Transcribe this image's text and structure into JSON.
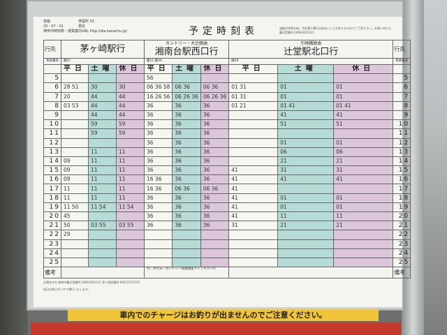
{
  "header": {
    "line1": "自版",
    "line2": "25・07・01",
    "line3": "神奈中時刻表・運賃案内URL  http://dia.kanachu.jp/",
    "stop_label": "停留所",
    "stop_no": "03",
    "current": "現在",
    "title": "予定時刻表",
    "notice": "道路渋滞等の為、予定通り運行出来ないことがありますのでご了承下さい。お問い合わせ 藤沢営業所 0466(36)5121"
  },
  "labels": {
    "destination": "行先",
    "route_no": "系統番号",
    "remarks": "備考"
  },
  "day_types": [
    "平日",
    "土曜",
    "休日"
  ],
  "routes": [
    {
      "via": "",
      "destination": "茅ヶ崎駅行",
      "codes": "藤07"
    },
    {
      "via": "カントリー・大辻経由",
      "destination": "湘南台駅西口行",
      "codes": "藤15 藤39"
    },
    {
      "via": "引地橋経由",
      "destination": "辻堂駅北口行",
      "codes": "藤09"
    }
  ],
  "remarks": [
    "",
    "カ：大六天・カントリー経由湘南ライフタウン行",
    ""
  ],
  "hours": [
    5,
    6,
    7,
    8,
    9,
    10,
    11,
    12,
    13,
    14,
    15,
    16,
    17,
    18,
    19,
    20,
    21,
    22,
    23,
    24,
    25
  ],
  "timetable": [
    [
      "",
      "",
      "",
      "56",
      "",
      "",
      "",
      "",
      ""
    ],
    [
      "28 51",
      "30",
      "30",
      "06 36 58",
      "06 36",
      "06 36",
      "01 31",
      "01",
      "01"
    ],
    [
      "20",
      "44",
      "44",
      "16 26 56",
      "06 26 36",
      "06 26 36",
      "01 31",
      "01",
      "01"
    ],
    [
      "03 53",
      "44",
      "44",
      "36",
      "36",
      "36",
      "01 21",
      "01 41",
      "01 41"
    ],
    [
      "",
      "44",
      "44",
      "36",
      "36",
      "36",
      "",
      "41",
      "41"
    ],
    [
      "",
      "59",
      "59",
      "36",
      "36",
      "36",
      "",
      "51",
      "51"
    ],
    [
      "",
      "59",
      "59",
      "36",
      "36",
      "36",
      "",
      "",
      ""
    ],
    [
      "",
      "",
      "",
      "36",
      "36",
      "36",
      "",
      "01",
      "01"
    ],
    [
      "",
      "11",
      "11",
      "36",
      "36",
      "36",
      "",
      "06",
      "06"
    ],
    [
      "09",
      "11",
      "11",
      "36",
      "36",
      "36",
      "",
      "21",
      "21"
    ],
    [
      "09",
      "11",
      "11",
      "36",
      "36",
      "36",
      "41",
      "31",
      "31"
    ],
    [
      "09",
      "11",
      "11",
      "16 36",
      "36",
      "36",
      "41",
      "41",
      "41"
    ],
    [
      "11",
      "11",
      "11",
      "16 36",
      "06 36",
      "06 36",
      "41",
      "",
      ""
    ],
    [
      "11",
      "11",
      "11",
      "36",
      "36",
      "36",
      "41",
      "01",
      "01"
    ],
    [
      "11 50",
      "11 54",
      "11 54",
      "36",
      "36",
      "36",
      "41",
      "01",
      "01"
    ],
    [
      "45",
      "",
      "",
      "36",
      "36",
      "36",
      "41",
      "11",
      "11"
    ],
    [
      "50",
      "03 55",
      "03 55",
      "36",
      "36",
      "36",
      "31",
      "21",
      "21"
    ],
    [
      "29",
      "",
      "",
      "",
      "",
      "",
      "",
      "",
      ""
    ],
    [
      "",
      "",
      "",
      "",
      "",
      "",
      "",
      "",
      ""
    ],
    [
      "",
      "",
      "",
      "",
      "",
      "",
      "",
      "",
      ""
    ],
    [
      "",
      "",
      "",
      "",
      "",
      "",
      "",
      "",
      ""
    ]
  ],
  "footer": {
    "contact": "お問合せ先 神奈中藤沢営業所 0466(36)5121 茅ヶ崎営業所 0467(52)7101",
    "holiday_note": "祝日は休日ダイヤで運行いたします。"
  },
  "banner": "車内でのチャージはお釣りが出ませんのでご注意ください。"
}
